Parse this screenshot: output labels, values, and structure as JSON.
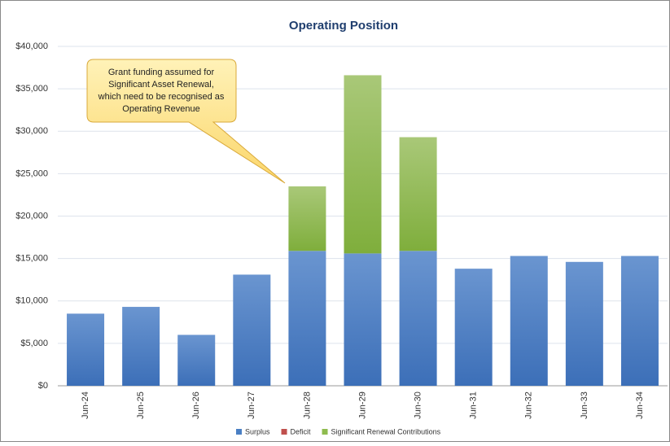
{
  "chart_data": {
    "type": "stacked_bar",
    "title": "Operating Position",
    "categories": [
      "Jun-24",
      "Jun-25",
      "Jun-26",
      "Jun-27",
      "Jun-28",
      "Jun-29",
      "Jun-30",
      "Jun-31",
      "Jun-32",
      "Jun-33",
      "Jun-34"
    ],
    "series": [
      {
        "name": "Surplus",
        "color": "#4a7fc4",
        "values": [
          8500,
          9300,
          6000,
          13100,
          15900,
          15600,
          15900,
          13800,
          15300,
          14600,
          15300
        ]
      },
      {
        "name": "Deficit",
        "color": "#c0504d",
        "values": [
          0,
          0,
          0,
          0,
          0,
          0,
          0,
          0,
          0,
          0,
          0
        ]
      },
      {
        "name": "Significant Renewal Contributions",
        "color": "#8fbc4f",
        "values": [
          0,
          0,
          0,
          0,
          7600,
          21000,
          13400,
          0,
          0,
          0,
          0
        ]
      }
    ],
    "ylim": [
      0,
      40000
    ],
    "yticks": [
      {
        "value": 0,
        "label": "$0"
      },
      {
        "value": 5000,
        "label": "$5,000"
      },
      {
        "value": 10000,
        "label": "$10,000"
      },
      {
        "value": 15000,
        "label": "$15,000"
      },
      {
        "value": 20000,
        "label": "$20,000"
      },
      {
        "value": 25000,
        "label": "$25,000"
      },
      {
        "value": 30000,
        "label": "$30,000"
      },
      {
        "value": 35000,
        "label": "$35,000"
      },
      {
        "value": 40000,
        "label": "$40,000"
      }
    ],
    "grid": true,
    "annotation": [
      "Grant funding assumed for",
      "Significant Asset Renewal,",
      "which need to be recognised as",
      "Operating Revenue"
    ]
  }
}
